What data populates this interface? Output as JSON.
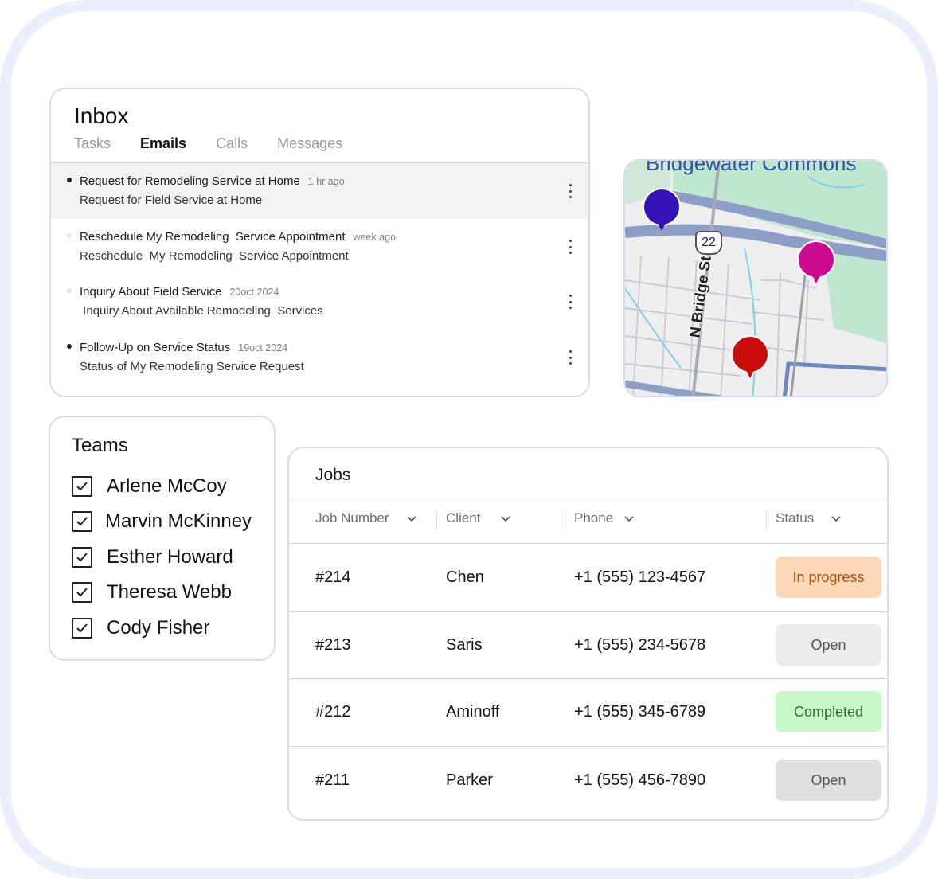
{
  "inbox": {
    "title": "Inbox",
    "tabs": [
      {
        "label": "Tasks",
        "active": false
      },
      {
        "label": "Emails",
        "active": true
      },
      {
        "label": "Calls",
        "active": false
      },
      {
        "label": "Messages",
        "active": false
      }
    ],
    "emails": [
      {
        "subject": "Request for Remodeling Service at Home",
        "time": "1 hr ago",
        "preview": "Request for Field Service at Home",
        "unread": true,
        "selected": true
      },
      {
        "subject": "Reschedule My Remodeling  Service Appointment",
        "time": "week ago",
        "preview": "Reschedule  My Remodeling  Service Appointment",
        "unread": false,
        "selected": false
      },
      {
        "subject": "Inquiry About Field Service",
        "time": "20oct 2024",
        "preview": " Inquiry About Available Remodeling  Services",
        "unread": false,
        "selected": false
      },
      {
        "subject": "Follow-Up on Service Status",
        "time": "19oct 2024",
        "preview": "Status of My Remodeling Service Request",
        "unread": true,
        "selected": false
      }
    ]
  },
  "map": {
    "place_label": "Bridgewater Commons",
    "street_label": "N Bridge St",
    "route_shield": "22",
    "pins": [
      {
        "name": "pin-blue",
        "color": "#3213b8"
      },
      {
        "name": "pin-magenta",
        "color": "#cc0a8f"
      },
      {
        "name": "pin-red",
        "color": "#c80c0c"
      }
    ]
  },
  "teams": {
    "title": "Teams",
    "members": [
      {
        "name": "Arlene McCoy",
        "checked": true
      },
      {
        "name": "Marvin McKinney",
        "checked": true
      },
      {
        "name": "Esther Howard",
        "checked": true
      },
      {
        "name": "Theresa Webb",
        "checked": true
      },
      {
        "name": "Cody Fisher",
        "checked": true
      }
    ]
  },
  "jobs": {
    "title": "Jobs",
    "columns": [
      "Job Number",
      "Client",
      "Phone",
      "Status"
    ],
    "rows": [
      {
        "job": "#214",
        "client": "Chen",
        "phone": "+1 (555) 123-4567",
        "status": "In progress",
        "status_bg": "#fdd8b8",
        "status_fg": "#a8520f"
      },
      {
        "job": "#213",
        "client": "Saris",
        "phone": "+1 (555) 234-5678",
        "status": "Open",
        "status_bg": "#ececee",
        "status_fg": "#555555"
      },
      {
        "job": "#212",
        "client": "Aminoff",
        "phone": "+1 (555) 345-6789",
        "status": "Completed",
        "status_bg": "#c9f9c9",
        "status_fg": "#3b6a3b"
      },
      {
        "job": "#211",
        "client": "Parker",
        "phone": "+1 (555) 456-7890",
        "status": "Open",
        "status_bg": "#e0e0e0",
        "status_fg": "#555555"
      }
    ]
  }
}
